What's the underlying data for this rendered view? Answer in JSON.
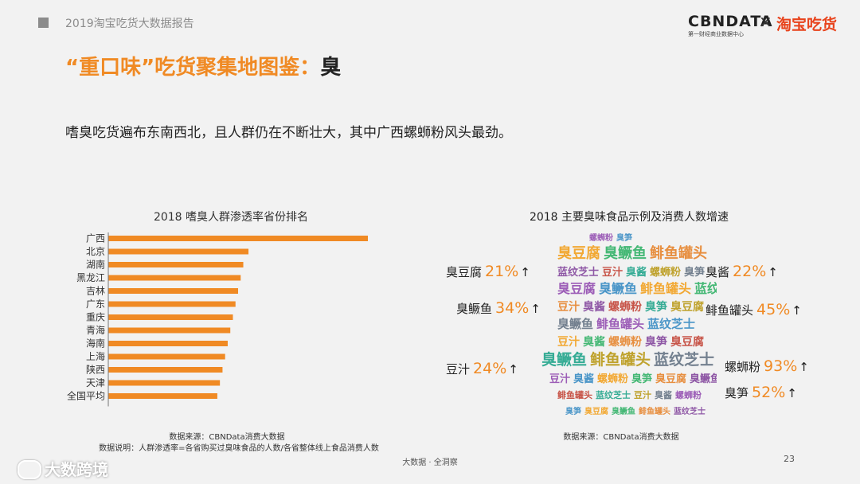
{
  "header": {
    "report_title": "2019淘宝吃货大数据报告",
    "logo_cbn": "CBNDATA",
    "logo_cbn_sub": "第一财经商业数据中心",
    "logo_x": "×",
    "logo_taobao": "淘宝吃货"
  },
  "title": {
    "main": "“重口味”吃货聚集地图鉴：",
    "tail": "臭"
  },
  "subtitle": "嗜臭吃货遍布东南西北，且人群仍在不断壮大，其中广西螺蛳粉风头最劲。",
  "left_panel": {
    "source": "数据来源：CBNData消费大数据",
    "note": "数据说明：人群渗透率=各省购买过臭味食品的人数/各省整体线上食品消费人数"
  },
  "right_panel": {
    "title": "2018 主要臭味食品示例及消费人数增速",
    "source": "数据来源：CBNData消费大数据",
    "arrow": "↑",
    "foods": [
      {
        "name": "臭豆腐",
        "growth": "21%"
      },
      {
        "name": "臭鳜鱼",
        "growth": "34%"
      },
      {
        "name": "豆汁",
        "growth": "24%"
      },
      {
        "name": "臭酱",
        "growth": "22%"
      },
      {
        "name": "鲱鱼罐头",
        "growth": "45%"
      },
      {
        "name": "螺蛳粉",
        "growth": "93%"
      },
      {
        "name": "臭笋",
        "growth": "52%"
      }
    ],
    "cloud_words": [
      "螺蛳粉",
      "臭笋",
      "臭豆腐",
      "臭鳜鱼",
      "鲱鱼罐头",
      "蓝纹芝士",
      "豆汁",
      "臭酱"
    ]
  },
  "chart_data": {
    "type": "bar",
    "orientation": "horizontal",
    "title": "2018 嗜臭人群渗透率省份排名",
    "categories": [
      "广西",
      "北京",
      "湖南",
      "黑龙江",
      "吉林",
      "广东",
      "重庆",
      "青海",
      "海南",
      "上海",
      "陕西",
      "天津",
      "全国平均"
    ],
    "values": [
      100,
      54,
      52,
      51,
      50,
      49,
      48,
      47,
      46,
      45,
      44,
      43,
      42
    ],
    "value_unit": "relative (unlabeled axis)",
    "color": "#f08a24",
    "grid": false,
    "legend": "none"
  },
  "footer": {
    "tagline": "大数据 · 全洞察",
    "page": "23",
    "brand": "大数跨境"
  }
}
